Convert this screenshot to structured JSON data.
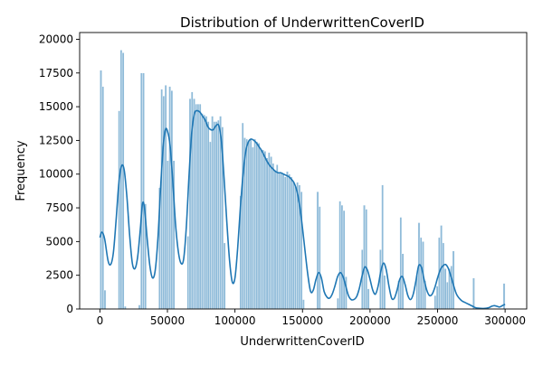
{
  "chart_data": {
    "type": "bar",
    "title": "Distribution of UnderwrittenCoverID",
    "xlabel": "UnderwrittenCoverID",
    "ylabel": "Frequency",
    "xlim": [
      -15000,
      316000
    ],
    "ylim": [
      0,
      20500
    ],
    "xticks": [
      0,
      50000,
      100000,
      150000,
      200000,
      250000,
      300000
    ],
    "xtick_labels": [
      "0",
      "50000",
      "100000",
      "150000",
      "200000",
      "250000",
      "300000"
    ],
    "yticks": [
      0,
      2500,
      5000,
      7500,
      10000,
      12500,
      15000,
      17500,
      20000
    ],
    "ytick_labels": [
      "0",
      "2500",
      "5000",
      "7500",
      "10000",
      "12500",
      "15000",
      "17500",
      "20000"
    ],
    "bar_color": "#1f77b4",
    "bar_opacity": 0.5,
    "kde_color": "#1f77b4",
    "bin_width": 1500,
    "bins": [
      [
        0,
        17700
      ],
      [
        1500,
        16500
      ],
      [
        3000,
        1400
      ],
      [
        13500,
        14700
      ],
      [
        15000,
        19200
      ],
      [
        16500,
        19000
      ],
      [
        18000,
        200
      ],
      [
        28500,
        300
      ],
      [
        30000,
        17500
      ],
      [
        31500,
        17500
      ],
      [
        33000,
        7800
      ],
      [
        43500,
        9000
      ],
      [
        45000,
        16300
      ],
      [
        46500,
        15800
      ],
      [
        48000,
        16600
      ],
      [
        49500,
        11000
      ],
      [
        51000,
        16500
      ],
      [
        52500,
        16200
      ],
      [
        54000,
        11000
      ],
      [
        64500,
        5400
      ],
      [
        66000,
        15600
      ],
      [
        67500,
        16100
      ],
      [
        69000,
        15600
      ],
      [
        70500,
        15200
      ],
      [
        72000,
        15200
      ],
      [
        73500,
        15200
      ],
      [
        75000,
        14500
      ],
      [
        76500,
        14400
      ],
      [
        78000,
        14300
      ],
      [
        79500,
        13900
      ],
      [
        81000,
        12400
      ],
      [
        82500,
        14300
      ],
      [
        84000,
        13900
      ],
      [
        85500,
        13900
      ],
      [
        87000,
        14000
      ],
      [
        88500,
        14300
      ],
      [
        90000,
        13500
      ],
      [
        91500,
        4900
      ],
      [
        103500,
        8400
      ],
      [
        105000,
        13800
      ],
      [
        106500,
        12700
      ],
      [
        108000,
        12600
      ],
      [
        109500,
        12400
      ],
      [
        111000,
        12600
      ],
      [
        112500,
        12000
      ],
      [
        114000,
        12600
      ],
      [
        115500,
        12400
      ],
      [
        117000,
        12300
      ],
      [
        118500,
        11900
      ],
      [
        120000,
        11800
      ],
      [
        121500,
        11700
      ],
      [
        123000,
        11200
      ],
      [
        124500,
        11600
      ],
      [
        126000,
        11300
      ],
      [
        127500,
        10800
      ],
      [
        129000,
        10300
      ],
      [
        130500,
        10700
      ],
      [
        132000,
        10100
      ],
      [
        133500,
        10100
      ],
      [
        135000,
        10000
      ],
      [
        136500,
        9800
      ],
      [
        138000,
        10200
      ],
      [
        139500,
        10000
      ],
      [
        141000,
        9800
      ],
      [
        142500,
        9400
      ],
      [
        144000,
        9100
      ],
      [
        145500,
        9400
      ],
      [
        147000,
        9200
      ],
      [
        148500,
        8700
      ],
      [
        150000,
        700
      ],
      [
        160500,
        8700
      ],
      [
        162000,
        7600
      ],
      [
        175500,
        800
      ],
      [
        177000,
        8000
      ],
      [
        178500,
        7700
      ],
      [
        180000,
        7300
      ],
      [
        181500,
        2400
      ],
      [
        193500,
        4400
      ],
      [
        195000,
        7700
      ],
      [
        196500,
        7400
      ],
      [
        198000,
        1500
      ],
      [
        207000,
        4400
      ],
      [
        208500,
        9200
      ],
      [
        210000,
        2500
      ],
      [
        220500,
        2100
      ],
      [
        222000,
        6800
      ],
      [
        223500,
        4100
      ],
      [
        234000,
        2500
      ],
      [
        235500,
        6400
      ],
      [
        237000,
        5300
      ],
      [
        238500,
        5000
      ],
      [
        240000,
        2100
      ],
      [
        247500,
        1000
      ],
      [
        249000,
        1700
      ],
      [
        250500,
        5300
      ],
      [
        252000,
        6200
      ],
      [
        253500,
        4900
      ],
      [
        255000,
        3000
      ],
      [
        256500,
        2000
      ],
      [
        258000,
        3000
      ],
      [
        259500,
        3200
      ],
      [
        261000,
        4300
      ],
      [
        276000,
        2300
      ],
      [
        298500,
        1900
      ]
    ],
    "kde_points": [
      [
        0,
        5300
      ],
      [
        1500,
        5700
      ],
      [
        3500,
        5200
      ],
      [
        6000,
        3600
      ],
      [
        8000,
        3300
      ],
      [
        10000,
        4200
      ],
      [
        12000,
        6600
      ],
      [
        14000,
        9300
      ],
      [
        16000,
        10600
      ],
      [
        18000,
        10300
      ],
      [
        20000,
        8300
      ],
      [
        22000,
        5500
      ],
      [
        24000,
        3400
      ],
      [
        26000,
        3000
      ],
      [
        28000,
        3900
      ],
      [
        30000,
        6000
      ],
      [
        31500,
        7800
      ],
      [
        33000,
        7500
      ],
      [
        35000,
        5200
      ],
      [
        37000,
        3200
      ],
      [
        39000,
        2300
      ],
      [
        41000,
        2900
      ],
      [
        43000,
        5300
      ],
      [
        45000,
        9100
      ],
      [
        47000,
        12200
      ],
      [
        48500,
        13300
      ],
      [
        50000,
        13200
      ],
      [
        52000,
        12100
      ],
      [
        54000,
        9400
      ],
      [
        56000,
        6300
      ],
      [
        58000,
        4300
      ],
      [
        60000,
        3400
      ],
      [
        62000,
        3700
      ],
      [
        64000,
        6100
      ],
      [
        66000,
        9900
      ],
      [
        68000,
        13100
      ],
      [
        70000,
        14500
      ],
      [
        72000,
        14700
      ],
      [
        74000,
        14600
      ],
      [
        76000,
        14300
      ],
      [
        78000,
        14000
      ],
      [
        80000,
        13500
      ],
      [
        82000,
        13300
      ],
      [
        84000,
        13300
      ],
      [
        86000,
        13600
      ],
      [
        88000,
        13600
      ],
      [
        90000,
        12400
      ],
      [
        92000,
        9600
      ],
      [
        94000,
        6400
      ],
      [
        96000,
        3600
      ],
      [
        98000,
        2000
      ],
      [
        100000,
        2300
      ],
      [
        102000,
        4500
      ],
      [
        104000,
        7500
      ],
      [
        106000,
        10000
      ],
      [
        108000,
        11700
      ],
      [
        110000,
        12400
      ],
      [
        112000,
        12600
      ],
      [
        114000,
        12500
      ],
      [
        116000,
        12300
      ],
      [
        118000,
        12000
      ],
      [
        120000,
        11700
      ],
      [
        122000,
        11300
      ],
      [
        124000,
        10900
      ],
      [
        126000,
        10600
      ],
      [
        128000,
        10400
      ],
      [
        130000,
        10200
      ],
      [
        132000,
        10100
      ],
      [
        134000,
        10100
      ],
      [
        136000,
        10000
      ],
      [
        138000,
        9900
      ],
      [
        140000,
        9800
      ],
      [
        142000,
        9600
      ],
      [
        144000,
        9300
      ],
      [
        146000,
        8700
      ],
      [
        148000,
        7600
      ],
      [
        150000,
        6000
      ],
      [
        152000,
        4200
      ],
      [
        154000,
        2500
      ],
      [
        156000,
        1300
      ],
      [
        158000,
        1400
      ],
      [
        160000,
        2200
      ],
      [
        162000,
        2700
      ],
      [
        164000,
        2300
      ],
      [
        166000,
        1300
      ],
      [
        168000,
        900
      ],
      [
        170000,
        800
      ],
      [
        172000,
        1100
      ],
      [
        174000,
        1700
      ],
      [
        176000,
        2400
      ],
      [
        178000,
        2700
      ],
      [
        180000,
        2400
      ],
      [
        182000,
        1700
      ],
      [
        184000,
        1000
      ],
      [
        186000,
        700
      ],
      [
        188000,
        700
      ],
      [
        190000,
        900
      ],
      [
        192000,
        1500
      ],
      [
        194000,
        2400
      ],
      [
        196000,
        3100
      ],
      [
        198000,
        2900
      ],
      [
        200000,
        2200
      ],
      [
        202000,
        1400
      ],
      [
        204000,
        1100
      ],
      [
        206000,
        1700
      ],
      [
        208000,
        2800
      ],
      [
        210000,
        3400
      ],
      [
        212000,
        2900
      ],
      [
        214000,
        1700
      ],
      [
        216000,
        800
      ],
      [
        218000,
        800
      ],
      [
        220000,
        1400
      ],
      [
        222000,
        2200
      ],
      [
        224000,
        2400
      ],
      [
        226000,
        1800
      ],
      [
        228000,
        1000
      ],
      [
        230000,
        700
      ],
      [
        232000,
        1100
      ],
      [
        234000,
        2100
      ],
      [
        236000,
        3200
      ],
      [
        238000,
        3100
      ],
      [
        240000,
        2200
      ],
      [
        242000,
        1400
      ],
      [
        244000,
        1000
      ],
      [
        246000,
        1100
      ],
      [
        248000,
        1600
      ],
      [
        250000,
        2300
      ],
      [
        252000,
        2900
      ],
      [
        254000,
        3200
      ],
      [
        256000,
        3300
      ],
      [
        258000,
        3000
      ],
      [
        260000,
        2400
      ],
      [
        262000,
        1700
      ],
      [
        264000,
        1100
      ],
      [
        266000,
        800
      ],
      [
        268000,
        600
      ],
      [
        270000,
        500
      ],
      [
        272000,
        400
      ],
      [
        274000,
        300
      ],
      [
        276000,
        200
      ],
      [
        278000,
        100
      ],
      [
        280000,
        60
      ],
      [
        284000,
        40
      ],
      [
        288000,
        100
      ],
      [
        290000,
        200
      ],
      [
        292000,
        250
      ],
      [
        294000,
        200
      ],
      [
        296000,
        150
      ],
      [
        298000,
        250
      ],
      [
        300000,
        350
      ]
    ]
  }
}
